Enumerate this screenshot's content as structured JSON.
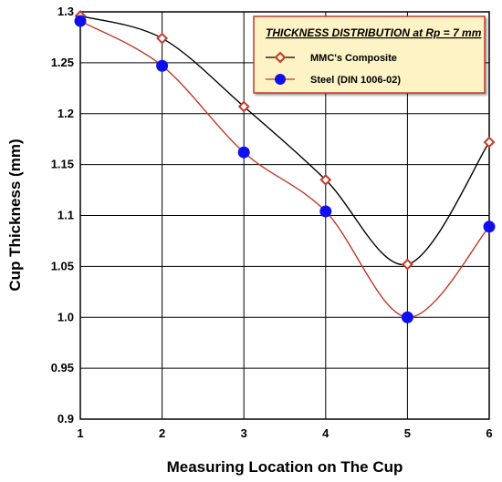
{
  "chart_data": {
    "type": "line",
    "title": "",
    "xlabel": "Measuring Location on The Cup",
    "ylabel": "Cup Thickness (mm)",
    "xlim": [
      1,
      6
    ],
    "ylim": [
      0.9,
      1.3
    ],
    "x_ticks": [
      1,
      2,
      3,
      4,
      5,
      6
    ],
    "x_tick_labels": [
      "1",
      "2",
      "3",
      "4",
      "5",
      "6"
    ],
    "y_ticks": [
      0.9,
      0.95,
      1.0,
      1.05,
      1.1,
      1.15,
      1.2,
      1.25,
      1.3
    ],
    "y_tick_labels": [
      "0.9",
      "0.95",
      "1.0",
      "1.05",
      "1.1",
      "1.15",
      "1.2",
      "1.25",
      "1.3"
    ],
    "grid": true,
    "legend": {
      "title": "THICKNESS DISTRIBUTION at Rp = 7 mm",
      "placement": "top-right",
      "background": "#fdf3c4",
      "border": "#c0392b"
    },
    "x": [
      1,
      2,
      3,
      4,
      5,
      6
    ],
    "series": [
      {
        "name": "MMC's Composite",
        "values": [
          1.296,
          1.274,
          1.207,
          1.135,
          1.052,
          1.172
        ],
        "line_color": "#000000",
        "marker": "diamond",
        "marker_color": "#c0392b"
      },
      {
        "name": "Steel (DIN 1006-02)",
        "values": [
          1.291,
          1.247,
          1.162,
          1.104,
          1.0,
          1.089
        ],
        "line_color": "#c0392b",
        "marker": "circle",
        "marker_color": "#1010ee"
      }
    ]
  }
}
